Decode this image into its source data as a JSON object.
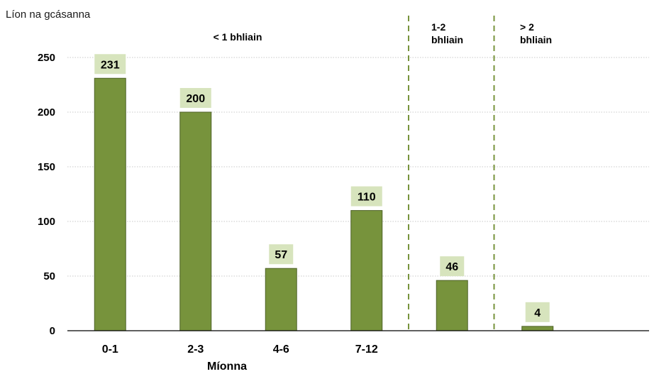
{
  "chart_data": {
    "type": "bar",
    "title": "",
    "ylabel": "Líon na gcásanna",
    "xlabel": "Míonna",
    "categories": [
      "0-1",
      "2-3",
      "4-6",
      "7-12",
      "",
      ""
    ],
    "values": [
      231,
      200,
      57,
      110,
      46,
      4
    ],
    "data_labels": [
      "231",
      "200",
      "57",
      "110",
      "46",
      "4"
    ],
    "ylim": [
      0,
      250
    ],
    "yticks": [
      "0",
      "50",
      "100",
      "150",
      "200",
      "250"
    ],
    "grid": true,
    "legend": "none",
    "group_labels": [
      {
        "lines": [
          "< 1 bhliain"
        ]
      },
      {
        "lines": [
          "1-2",
          "bhliain"
        ]
      },
      {
        "lines": [
          "> 2",
          "bhliain"
        ]
      }
    ],
    "colors": {
      "bar": "#77933c",
      "bar_edge": "#4f6228",
      "label_box": "#d7e4bd",
      "separator": "#77933c",
      "grid": "#c8c8c8"
    }
  }
}
